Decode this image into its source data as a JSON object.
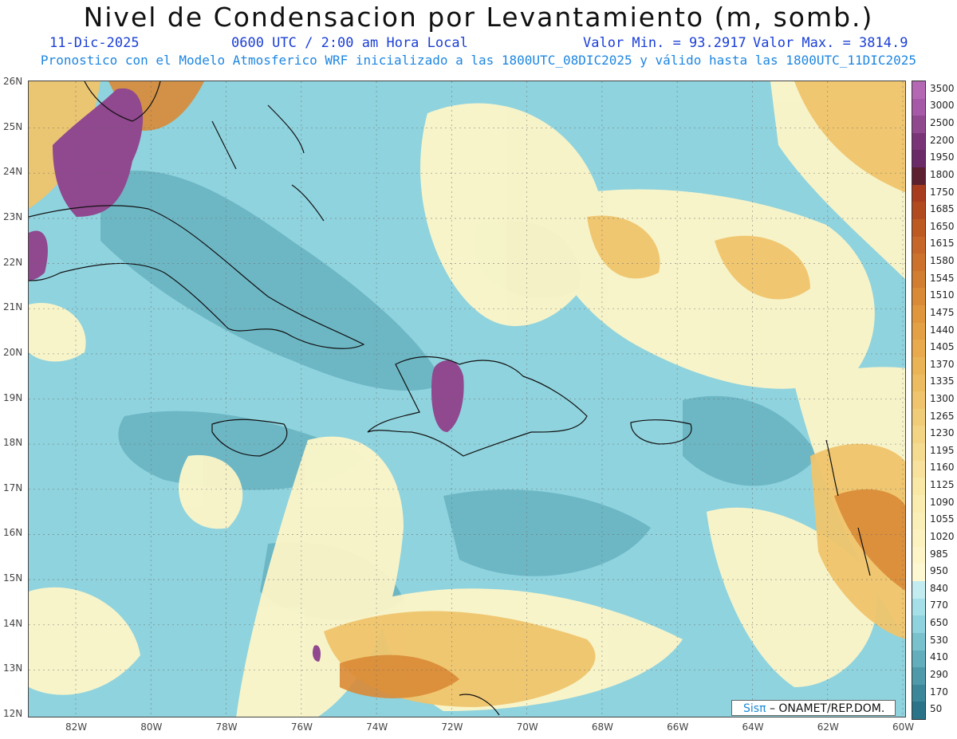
{
  "header": {
    "title": "Nivel de Condensacion por Levantamiento (m, somb.)",
    "date": "11-Dic-2025",
    "time": "0600 UTC / 2:00 am Hora Local",
    "min_label": "Valor Min. = 93.2917",
    "max_label": "Valor Max. = 3814.9",
    "subtitle": "Pronostico con el Modelo Atmosferico WRF inicializado a las 1800UTC_08DIC2025 y válido hasta las  1800UTC_11DIC2025"
  },
  "map": {
    "lat_labels": [
      "26N",
      "25N",
      "24N",
      "23N",
      "22N",
      "21N",
      "20N",
      "19N",
      "18N",
      "17N",
      "16N",
      "15N",
      "14N",
      "13N",
      "12N"
    ],
    "lon_labels": [
      "82W",
      "80W",
      "78W",
      "76W",
      "74W",
      "72W",
      "70W",
      "68W",
      "66W",
      "64W",
      "62W",
      "60W"
    ]
  },
  "colorbar": {
    "labels": [
      "3500",
      "3000",
      "2500",
      "2200",
      "1950",
      "1800",
      "1750",
      "1685",
      "1650",
      "1615",
      "1580",
      "1545",
      "1510",
      "1475",
      "1440",
      "1405",
      "1370",
      "1335",
      "1300",
      "1265",
      "1230",
      "1195",
      "1160",
      "1125",
      "1090",
      "1055",
      "1020",
      "985",
      "950",
      "840",
      "770",
      "650",
      "530",
      "410",
      "290",
      "170",
      "50"
    ],
    "colors": [
      "#b468b4",
      "#a659a7",
      "#90488f",
      "#7a3578",
      "#6b2a68",
      "#5c2030",
      "#a83c1e",
      "#b24a20",
      "#bd5a22",
      "#c66628",
      "#cc722c",
      "#d17e30",
      "#d98a36",
      "#e0963c",
      "#e4a044",
      "#e8aa4c",
      "#eab456",
      "#edbc60",
      "#efc46c",
      "#f1cc78",
      "#f3d484",
      "#f5db90",
      "#f7e19c",
      "#f9e7a6",
      "#faebaf",
      "#fbefb8",
      "#fcf2c0",
      "#fdf5c8",
      "#fef8d2",
      "#c2ecf0",
      "#a5e0e8",
      "#8fd3de",
      "#78c1cd",
      "#62aebc",
      "#4e9aaa",
      "#3b8699",
      "#2a7388"
    ]
  },
  "credit": {
    "brand_prefix": "Sis",
    "brand_pi": "π",
    "suffix": " – ONAMET/REP.DOM."
  }
}
